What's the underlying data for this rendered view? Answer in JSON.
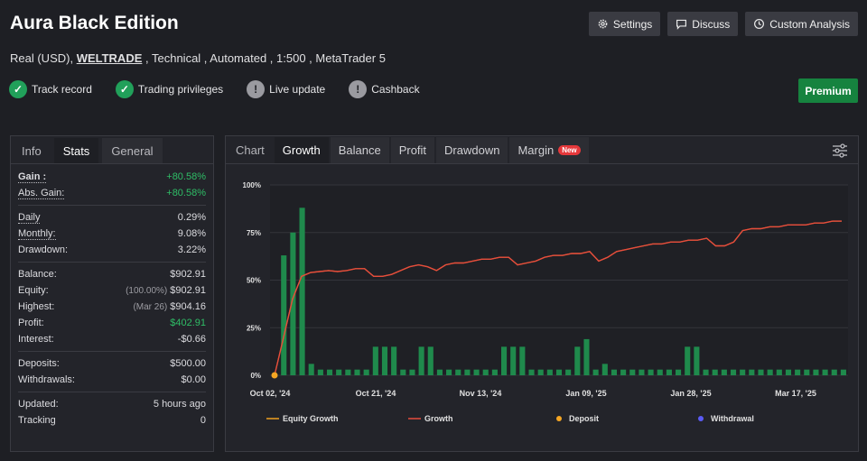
{
  "header": {
    "title": "Aura Black Edition",
    "subtitle_pre": "Real (USD), ",
    "broker": "WELTRADE",
    "subtitle_post": " , Technical , Automated , 1:500 , MetaTrader 5"
  },
  "top_buttons": [
    {
      "label": "Settings",
      "icon": "gear-icon"
    },
    {
      "label": "Discuss",
      "icon": "chat-icon"
    },
    {
      "label": "Custom Analysis",
      "icon": "clock-icon"
    }
  ],
  "badges": [
    {
      "label": "Track record",
      "status": "ok"
    },
    {
      "label": "Trading privileges",
      "status": "ok"
    },
    {
      "label": "Live update",
      "status": "info"
    },
    {
      "label": "Cashback",
      "status": "info"
    }
  ],
  "premium_label": "Premium",
  "stats": {
    "tabs": [
      "Info",
      "Stats",
      "General"
    ],
    "gain_label": "Gain :",
    "gain_value": "+80.58%",
    "abs_gain_label": "Abs. Gain:",
    "abs_gain_value": "+80.58%",
    "daily_label": "Daily",
    "daily_value": "0.29%",
    "monthly_label": "Monthly:",
    "monthly_value": "9.08%",
    "drawdown_label": "Drawdown:",
    "drawdown_value": "3.22%",
    "balance_label": "Balance:",
    "balance_value": "$902.91",
    "equity_label": "Equity:",
    "equity_pct": "(100.00%)",
    "equity_value": "$902.91",
    "highest_label": "Highest:",
    "highest_date": "(Mar 26)",
    "highest_value": "$904.16",
    "profit_label": "Profit:",
    "profit_value": "$402.91",
    "interest_label": "Interest:",
    "interest_value": "-$0.66",
    "deposits_label": "Deposits:",
    "deposits_value": "$500.00",
    "withdrawals_label": "Withdrawals:",
    "withdrawals_value": "$0.00",
    "updated_label": "Updated:",
    "updated_value": "5 hours ago",
    "tracking_label": "Tracking",
    "tracking_value": "0"
  },
  "chart_tabs": {
    "items": [
      "Chart",
      "Growth",
      "Balance",
      "Profit",
      "Drawdown",
      "Margin"
    ],
    "new_badge": "New"
  },
  "chart_data": {
    "type": "line",
    "yticks": [
      "100%",
      "75%",
      "50%",
      "25%",
      "0%"
    ],
    "ylim": [
      0,
      100
    ],
    "xticks": [
      "Oct 02, '24",
      "Oct 21, '24",
      "Nov 13, '24",
      "Jan 09, '25",
      "Jan 28, '25",
      "Mar 17, '25"
    ],
    "legend": [
      "Equity Growth",
      "Growth",
      "Deposit",
      "Withdrawal"
    ],
    "colors": {
      "equity": "#f0a020",
      "growth": "#e74c3c",
      "deposit": "#f5a623",
      "withdrawal": "#5b5bf5",
      "bars": "#1f8a4c"
    },
    "growth_points": [
      [
        0,
        0
      ],
      [
        1,
        20
      ],
      [
        2,
        40
      ],
      [
        3,
        52
      ],
      [
        4,
        54
      ],
      [
        5,
        54.5
      ],
      [
        6,
        55
      ],
      [
        7,
        54.5
      ],
      [
        8,
        55
      ],
      [
        9,
        56
      ],
      [
        10,
        56
      ],
      [
        11,
        52
      ],
      [
        12,
        52
      ],
      [
        13,
        53
      ],
      [
        14,
        55
      ],
      [
        15,
        57
      ],
      [
        16,
        58
      ],
      [
        17,
        57
      ],
      [
        18,
        55
      ],
      [
        19,
        58
      ],
      [
        20,
        59
      ],
      [
        21,
        59
      ],
      [
        22,
        60
      ],
      [
        23,
        61
      ],
      [
        24,
        61
      ],
      [
        25,
        62
      ],
      [
        26,
        62
      ],
      [
        27,
        58
      ],
      [
        28,
        59
      ],
      [
        29,
        60
      ],
      [
        30,
        62
      ],
      [
        31,
        63
      ],
      [
        32,
        63
      ],
      [
        33,
        64
      ],
      [
        34,
        64
      ],
      [
        35,
        65
      ],
      [
        36,
        60
      ],
      [
        37,
        62
      ],
      [
        38,
        65
      ],
      [
        39,
        66
      ],
      [
        40,
        67
      ],
      [
        41,
        68
      ],
      [
        42,
        69
      ],
      [
        43,
        69
      ],
      [
        44,
        70
      ],
      [
        45,
        70
      ],
      [
        46,
        71
      ],
      [
        47,
        71
      ],
      [
        48,
        72
      ],
      [
        49,
        68
      ],
      [
        50,
        68
      ],
      [
        51,
        70
      ],
      [
        52,
        76
      ],
      [
        53,
        77
      ],
      [
        54,
        77
      ],
      [
        55,
        78
      ],
      [
        56,
        78
      ],
      [
        57,
        79
      ],
      [
        58,
        79
      ],
      [
        59,
        79
      ],
      [
        60,
        80
      ],
      [
        61,
        80
      ],
      [
        62,
        81
      ],
      [
        63,
        81
      ]
    ],
    "bars": [
      0,
      63,
      75,
      88,
      6,
      3,
      3,
      3,
      3,
      3,
      3,
      15,
      15,
      15,
      3,
      3,
      15,
      15,
      3,
      3,
      3,
      3,
      3,
      3,
      3,
      15,
      15,
      15,
      3,
      3,
      3,
      3,
      3,
      15,
      19,
      3,
      6,
      3,
      3,
      3,
      3,
      3,
      3,
      3,
      3,
      15,
      15,
      3,
      3,
      3,
      3,
      3,
      3,
      3,
      3,
      3,
      3,
      3,
      3,
      3,
      3,
      3,
      3
    ],
    "deposit_x": 0
  }
}
